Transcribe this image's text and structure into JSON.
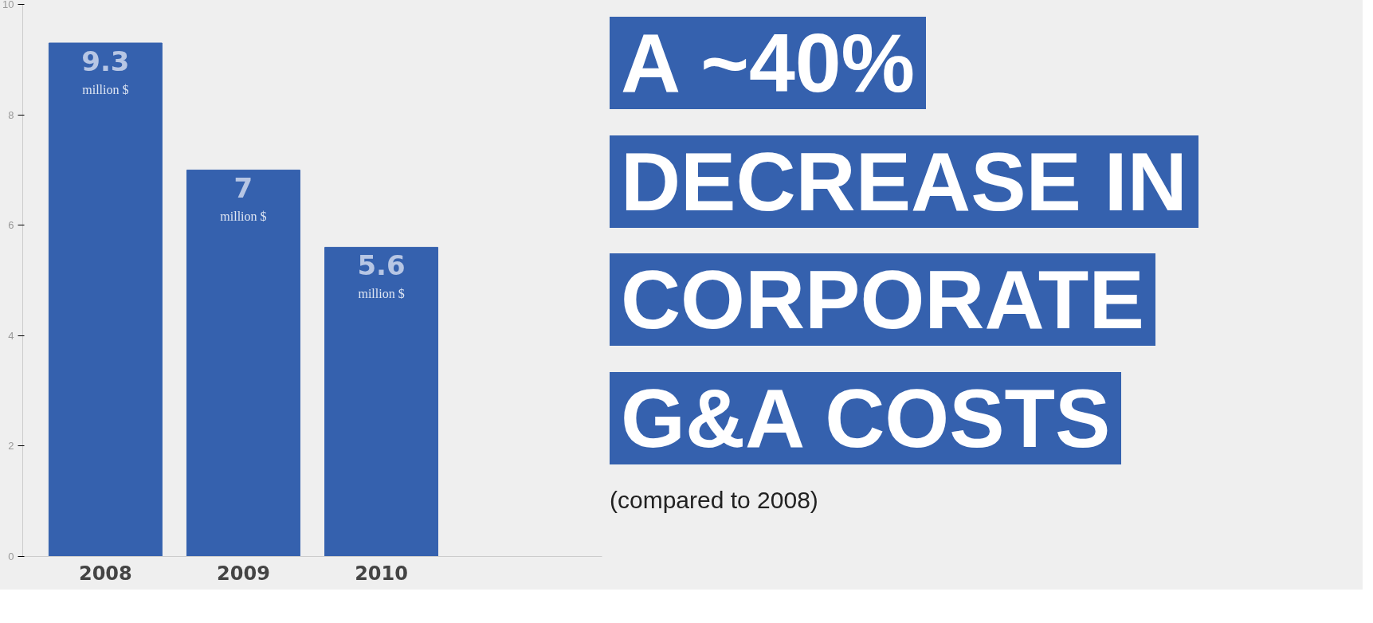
{
  "chart_data": {
    "type": "bar",
    "title": "A ~40% DECREASE IN CORPORATE G&A COSTS",
    "subtitle": "(compared to 2008)",
    "categories": [
      "2008",
      "2009",
      "2010"
    ],
    "values": [
      9.3,
      7,
      5.6
    ],
    "data_labels": true,
    "annotations": [
      "million $",
      "million $",
      "million $"
    ],
    "color": "#3561ae",
    "ylim": [
      0,
      10
    ],
    "yticks": [
      0,
      2,
      4,
      6,
      8,
      10
    ],
    "grid": false
  }
}
